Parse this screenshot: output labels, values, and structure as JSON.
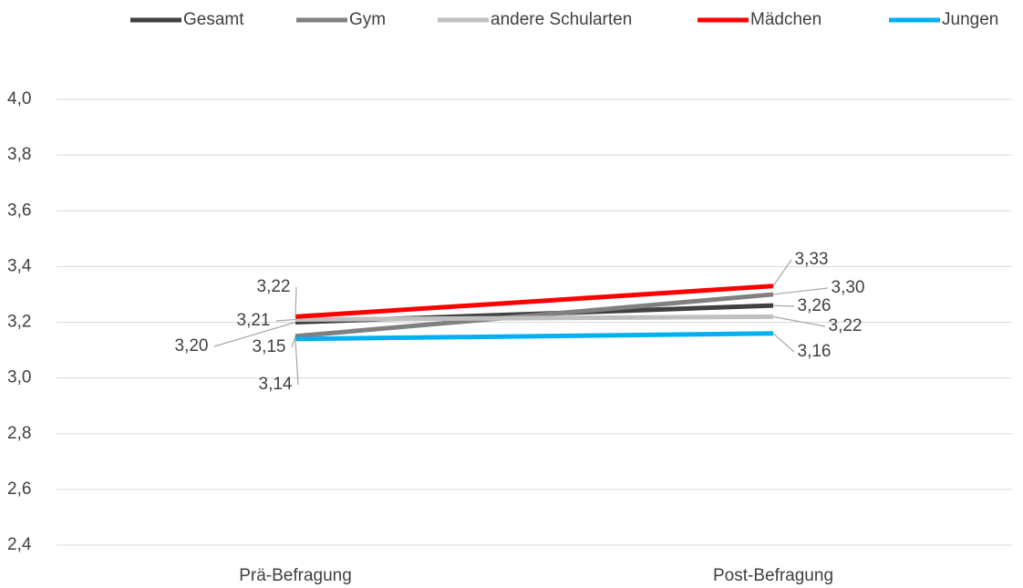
{
  "chart_data": {
    "type": "line",
    "categories": [
      "Prä-Befragung",
      "Post-Befragung"
    ],
    "series": [
      {
        "name": "Gesamt",
        "color": "#404040",
        "values": [
          3.2,
          3.26
        ],
        "value_labels": [
          "3,20",
          "3,26"
        ]
      },
      {
        "name": "Gym",
        "color": "#808080",
        "values": [
          3.15,
          3.3
        ],
        "value_labels": [
          "3,15",
          "3,30"
        ]
      },
      {
        "name": "andere Schularten",
        "color": "#c0c0c0",
        "values": [
          3.21,
          3.22
        ],
        "value_labels": [
          "3,21",
          "3,22"
        ]
      },
      {
        "name": "Mädchen",
        "color": "#ff0000",
        "values": [
          3.22,
          3.33
        ],
        "value_labels": [
          "3,22",
          "3,33"
        ]
      },
      {
        "name": "Jungen",
        "color": "#00b0f0",
        "values": [
          3.14,
          3.16
        ],
        "value_labels": [
          "3,14",
          "3,16"
        ]
      }
    ],
    "ylim": [
      2.4,
      4.0
    ],
    "yticks": [
      {
        "value": 2.4,
        "label": "2,4"
      },
      {
        "value": 2.6,
        "label": "2,6"
      },
      {
        "value": 2.8,
        "label": "2,8"
      },
      {
        "value": 3.0,
        "label": "3,0"
      },
      {
        "value": 3.2,
        "label": "3,2"
      },
      {
        "value": 3.4,
        "label": "3,4"
      },
      {
        "value": 3.6,
        "label": "3,6"
      },
      {
        "value": 3.8,
        "label": "3,8"
      },
      {
        "value": 4.0,
        "label": "4,0"
      }
    ],
    "grid": true,
    "legend": "top"
  }
}
